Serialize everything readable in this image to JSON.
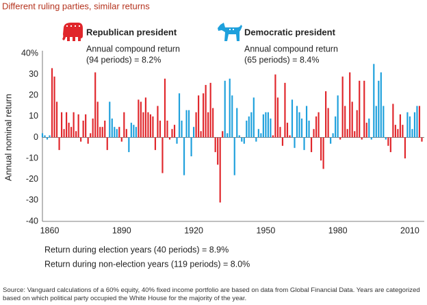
{
  "chart_data": {
    "type": "bar",
    "title": "Different ruling parties, similar returns",
    "y_label": "Annual nominal return",
    "annotations": [
      {
        "lines": [
          "Annual compound return",
          "(94 periods) = 8.2%"
        ]
      },
      {
        "lines": [
          "Annual compound return",
          "(65 periods) = 8.4%"
        ]
      }
    ],
    "notes": [
      "Return during election years (40 periods) = 8.9%",
      "Return during non-election years (119 periods) = 8.0%"
    ],
    "source": "Source: Vanguard calculations of a 60% equity, 40% fixed income portfolio are based on data from Global Financial Data. Years are categorized based on which political party occupied the White House for the majority of the year.",
    "xlim": [
      1857,
      2016
    ],
    "xticks": [
      1860,
      1890,
      1920,
      1950,
      1980,
      2010
    ],
    "ylim": [
      -40,
      40
    ],
    "yticks": [
      {
        "value": 40,
        "label": "40%"
      },
      30,
      20,
      10,
      0,
      -10,
      -20,
      -30,
      -40
    ],
    "grid": false,
    "x": [
      1857,
      1858,
      1859,
      1860,
      1861,
      1862,
      1863,
      1864,
      1865,
      1866,
      1867,
      1868,
      1869,
      1870,
      1871,
      1872,
      1873,
      1874,
      1875,
      1876,
      1877,
      1878,
      1879,
      1880,
      1881,
      1882,
      1883,
      1884,
      1885,
      1886,
      1887,
      1888,
      1889,
      1890,
      1891,
      1892,
      1893,
      1894,
      1895,
      1896,
      1897,
      1898,
      1899,
      1900,
      1901,
      1902,
      1903,
      1904,
      1905,
      1906,
      1907,
      1908,
      1909,
      1910,
      1911,
      1912,
      1913,
      1914,
      1915,
      1916,
      1917,
      1918,
      1919,
      1920,
      1921,
      1922,
      1923,
      1924,
      1925,
      1926,
      1927,
      1928,
      1929,
      1930,
      1931,
      1932,
      1933,
      1934,
      1935,
      1936,
      1937,
      1938,
      1939,
      1940,
      1941,
      1942,
      1943,
      1944,
      1945,
      1946,
      1947,
      1948,
      1949,
      1950,
      1951,
      1952,
      1953,
      1954,
      1955,
      1956,
      1957,
      1958,
      1959,
      1960,
      1961,
      1962,
      1963,
      1964,
      1965,
      1966,
      1967,
      1968,
      1969,
      1970,
      1971,
      1972,
      1973,
      1974,
      1975,
      1976,
      1977,
      1978,
      1979,
      1980,
      1981,
      1982,
      1983,
      1984,
      1985,
      1986,
      1987,
      1988,
      1989,
      1990,
      1991,
      1992,
      1993,
      1994,
      1995,
      1996,
      1997,
      1998,
      1999,
      2000,
      2001,
      2002,
      2003,
      2004,
      2005,
      2006,
      2007,
      2008,
      2009,
      2010,
      2011,
      2012,
      2013,
      2014,
      2015
    ],
    "series": [
      {
        "name": "Republican president",
        "color": "#e0262b",
        "values": [
          null,
          null,
          null,
          null,
          33,
          29,
          17,
          -6,
          12,
          4,
          12,
          7,
          5,
          12,
          3,
          11,
          -2,
          8,
          11,
          -3,
          2,
          9,
          31,
          17,
          5,
          5,
          8,
          -6,
          null,
          null,
          null,
          null,
          5,
          -2,
          12,
          4,
          null,
          null,
          null,
          null,
          18,
          17,
          12,
          19,
          12,
          11,
          10,
          -6,
          15,
          8,
          -17,
          28,
          8,
          -1,
          4,
          6,
          null,
          null,
          null,
          null,
          null,
          null,
          null,
          null,
          12,
          20,
          3,
          21,
          25,
          12,
          26,
          14,
          -7,
          -13,
          -31,
          3,
          null,
          null,
          null,
          null,
          null,
          null,
          null,
          null,
          null,
          null,
          null,
          null,
          null,
          null,
          null,
          null,
          null,
          null,
          null,
          null,
          1,
          30,
          19,
          5,
          -4,
          26,
          7,
          1,
          null,
          null,
          null,
          null,
          null,
          null,
          null,
          null,
          -7,
          4,
          10,
          12,
          -11,
          -15,
          22,
          14,
          null,
          null,
          null,
          null,
          -1,
          29,
          15,
          4,
          31,
          17,
          3,
          13,
          27,
          -1,
          27,
          7,
          null,
          null,
          null,
          null,
          null,
          null,
          null,
          null,
          -4,
          -7,
          16,
          6,
          4,
          11,
          6,
          -10,
          null,
          null,
          null,
          null,
          null,
          15,
          -2
        ]
      },
      {
        "name": "Democratic president",
        "color": "#1ea0dc",
        "values": [
          2,
          1,
          -1,
          1,
          null,
          null,
          null,
          null,
          null,
          null,
          null,
          null,
          null,
          null,
          null,
          null,
          null,
          null,
          null,
          null,
          null,
          null,
          null,
          null,
          null,
          null,
          null,
          null,
          17,
          9,
          5,
          4,
          null,
          null,
          null,
          null,
          -7,
          7,
          6,
          5,
          null,
          null,
          null,
          null,
          null,
          null,
          null,
          null,
          null,
          null,
          null,
          null,
          null,
          null,
          null,
          null,
          -3,
          21,
          8,
          -18,
          13,
          13,
          -9,
          5,
          null,
          null,
          null,
          null,
          null,
          null,
          null,
          null,
          null,
          null,
          null,
          null,
          27,
          2,
          28,
          20,
          -18,
          14,
          1,
          -2,
          -3,
          8,
          10,
          12,
          19,
          -2,
          4,
          2,
          11,
          12,
          12,
          9,
          null,
          null,
          null,
          null,
          null,
          null,
          null,
          null,
          18,
          -5,
          15,
          12,
          9,
          -6,
          15,
          8,
          null,
          null,
          null,
          null,
          null,
          null,
          null,
          null,
          -3,
          2,
          10,
          20,
          null,
          null,
          null,
          null,
          null,
          null,
          null,
          null,
          null,
          null,
          null,
          null,
          9,
          -1,
          35,
          15,
          27,
          31,
          15,
          -1,
          null,
          null,
          null,
          null,
          null,
          null,
          null,
          null,
          12,
          10,
          4,
          12,
          15,
          null,
          null
        ]
      }
    ]
  }
}
